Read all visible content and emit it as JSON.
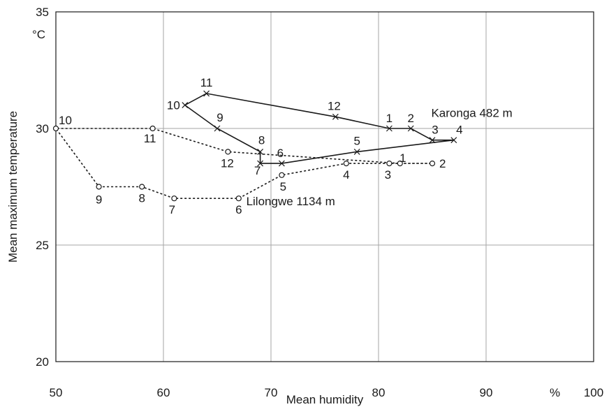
{
  "chart_data": {
    "type": "line",
    "xlabel": "Mean humidity",
    "ylabel": "Mean maximum temperature",
    "x_unit": "%",
    "y_unit": "°C",
    "xlim": [
      50,
      100
    ],
    "ylim": [
      20,
      35
    ],
    "x_ticks": [
      50,
      60,
      70,
      80,
      90,
      100
    ],
    "y_ticks": [
      20,
      25,
      30,
      35
    ],
    "grid": true,
    "series": [
      {
        "name": "Karonga 482 m",
        "style": "solid",
        "marker": "x",
        "color": "#1a1a1a",
        "points": [
          {
            "label": "1",
            "x": 81,
            "y": 30
          },
          {
            "label": "2",
            "x": 83,
            "y": 30
          },
          {
            "label": "3",
            "x": 85,
            "y": 29.5
          },
          {
            "label": "4",
            "x": 87,
            "y": 29.5
          },
          {
            "label": "5",
            "x": 78,
            "y": 29
          },
          {
            "label": "6",
            "x": 71,
            "y": 28.5
          },
          {
            "label": "7",
            "x": 69,
            "y": 28.5
          },
          {
            "label": "8",
            "x": 69,
            "y": 29
          },
          {
            "label": "9",
            "x": 65,
            "y": 30
          },
          {
            "label": "10",
            "x": 62,
            "y": 31
          },
          {
            "label": "11",
            "x": 64,
            "y": 31.5
          },
          {
            "label": "12",
            "x": 76,
            "y": 30.5
          }
        ]
      },
      {
        "name": "Lilongwe 1134 m",
        "style": "dotted",
        "marker": "circle",
        "color": "#1a1a1a",
        "points": [
          {
            "label": "1",
            "x": 82,
            "y": 28.5
          },
          {
            "label": "2",
            "x": 85,
            "y": 28.5
          },
          {
            "label": "3",
            "x": 81,
            "y": 28.5
          },
          {
            "label": "4",
            "x": 77,
            "y": 28.5
          },
          {
            "label": "5",
            "x": 71,
            "y": 28
          },
          {
            "label": "6",
            "x": 67,
            "y": 27
          },
          {
            "label": "7",
            "x": 61,
            "y": 27
          },
          {
            "label": "8",
            "x": 58,
            "y": 27.5
          },
          {
            "label": "9",
            "x": 54,
            "y": 27.5
          },
          {
            "label": "10",
            "x": 50,
            "y": 30
          },
          {
            "label": "11",
            "x": 59,
            "y": 30
          },
          {
            "label": "12",
            "x": 66,
            "y": 29
          }
        ]
      }
    ]
  }
}
